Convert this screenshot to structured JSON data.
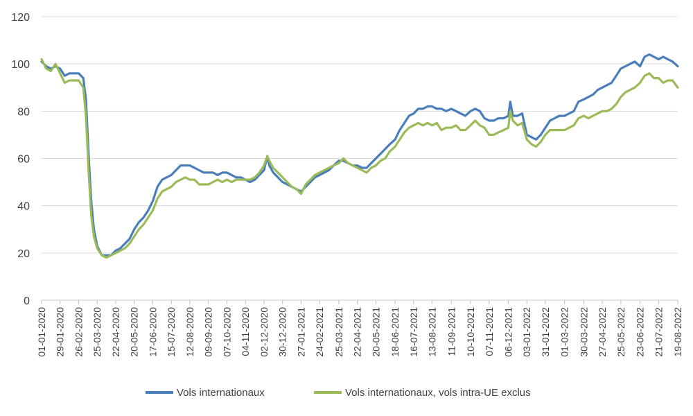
{
  "chart_data": {
    "type": "line",
    "title": "",
    "xlabel": "",
    "ylabel": "",
    "ylim": [
      0,
      120
    ],
    "yticks": [
      0,
      20,
      40,
      60,
      80,
      100,
      120
    ],
    "grid": true,
    "legend_position": "bottom",
    "x_tick_labels": [
      "01-01-2020",
      "29-01-2020",
      "26-02-2020",
      "25-03-2020",
      "22-04-2020",
      "20-05-2020",
      "17-06-2020",
      "15-07-2020",
      "12-08-2020",
      "09-09-2020",
      "07-10-2020",
      "04-11-2020",
      "02-12-2020",
      "30-12-2020",
      "27-01-2021",
      "24-02-2021",
      "25-03-2021",
      "22-04-2021",
      "20-05-2021",
      "18-06-2021",
      "16-07-2021",
      "13-08-2021",
      "11-09-2021",
      "10-10-2021",
      "07-11-2021",
      "06-12-2021",
      "03-01-2022",
      "31-01-2022",
      "01-03-2022",
      "30-03-2022",
      "27-04-2022",
      "25-05-2022",
      "23-06-2022",
      "21-07-2022",
      "19-08-2022"
    ],
    "series": [
      {
        "name": "Vols internationaux",
        "color": "#4a7ebb",
        "points": [
          [
            "01-01-2020",
            101
          ],
          [
            "08-01-2020",
            99
          ],
          [
            "15-01-2020",
            98
          ],
          [
            "22-01-2020",
            99
          ],
          [
            "29-01-2020",
            98
          ],
          [
            "05-02-2020",
            95
          ],
          [
            "12-02-2020",
            96
          ],
          [
            "19-02-2020",
            96
          ],
          [
            "26-02-2020",
            96
          ],
          [
            "04-03-2020",
            94
          ],
          [
            "08-03-2020",
            85
          ],
          [
            "12-03-2020",
            62
          ],
          [
            "16-03-2020",
            42
          ],
          [
            "20-03-2020",
            30
          ],
          [
            "25-03-2020",
            23
          ],
          [
            "01-04-2020",
            19
          ],
          [
            "08-04-2020",
            19
          ],
          [
            "15-04-2020",
            19
          ],
          [
            "22-04-2020",
            21
          ],
          [
            "29-04-2020",
            22
          ],
          [
            "06-05-2020",
            24
          ],
          [
            "13-05-2020",
            26
          ],
          [
            "20-05-2020",
            30
          ],
          [
            "27-05-2020",
            33
          ],
          [
            "03-06-2020",
            35
          ],
          [
            "10-06-2020",
            38
          ],
          [
            "17-06-2020",
            42
          ],
          [
            "24-06-2020",
            48
          ],
          [
            "01-07-2020",
            51
          ],
          [
            "08-07-2020",
            52
          ],
          [
            "15-07-2020",
            53
          ],
          [
            "22-07-2020",
            55
          ],
          [
            "29-07-2020",
            57
          ],
          [
            "05-08-2020",
            57
          ],
          [
            "12-08-2020",
            57
          ],
          [
            "19-08-2020",
            56
          ],
          [
            "26-08-2020",
            55
          ],
          [
            "02-09-2020",
            54
          ],
          [
            "09-09-2020",
            54
          ],
          [
            "16-09-2020",
            54
          ],
          [
            "23-09-2020",
            53
          ],
          [
            "30-09-2020",
            54
          ],
          [
            "07-10-2020",
            54
          ],
          [
            "14-10-2020",
            53
          ],
          [
            "21-10-2020",
            52
          ],
          [
            "28-10-2020",
            52
          ],
          [
            "04-11-2020",
            51
          ],
          [
            "11-11-2020",
            50
          ],
          [
            "18-11-2020",
            51
          ],
          [
            "25-11-2020",
            53
          ],
          [
            "02-12-2020",
            55
          ],
          [
            "07-12-2020",
            61
          ],
          [
            "10-12-2020",
            57
          ],
          [
            "16-12-2020",
            54
          ],
          [
            "23-12-2020",
            52
          ],
          [
            "30-12-2020",
            50
          ],
          [
            "06-01-2021",
            49
          ],
          [
            "13-01-2021",
            48
          ],
          [
            "20-01-2021",
            47
          ],
          [
            "27-01-2021",
            46
          ],
          [
            "03-02-2021",
            48
          ],
          [
            "10-02-2021",
            50
          ],
          [
            "17-02-2021",
            52
          ],
          [
            "24-02-2021",
            53
          ],
          [
            "03-03-2021",
            54
          ],
          [
            "10-03-2021",
            55
          ],
          [
            "17-03-2021",
            57
          ],
          [
            "25-03-2021",
            59
          ],
          [
            "01-04-2021",
            59
          ],
          [
            "08-04-2021",
            58
          ],
          [
            "15-04-2021",
            57
          ],
          [
            "22-04-2021",
            57
          ],
          [
            "29-04-2021",
            56
          ],
          [
            "06-05-2021",
            56
          ],
          [
            "13-05-2021",
            58
          ],
          [
            "20-05-2021",
            60
          ],
          [
            "27-05-2021",
            62
          ],
          [
            "03-06-2021",
            64
          ],
          [
            "10-06-2021",
            66
          ],
          [
            "18-06-2021",
            68
          ],
          [
            "25-06-2021",
            72
          ],
          [
            "02-07-2021",
            75
          ],
          [
            "09-07-2021",
            78
          ],
          [
            "16-07-2021",
            79
          ],
          [
            "23-07-2021",
            81
          ],
          [
            "30-07-2021",
            81
          ],
          [
            "06-08-2021",
            82
          ],
          [
            "13-08-2021",
            82
          ],
          [
            "20-08-2021",
            81
          ],
          [
            "27-08-2021",
            81
          ],
          [
            "03-09-2021",
            80
          ],
          [
            "11-09-2021",
            81
          ],
          [
            "18-09-2021",
            80
          ],
          [
            "25-09-2021",
            79
          ],
          [
            "02-10-2021",
            78
          ],
          [
            "10-10-2021",
            80
          ],
          [
            "17-10-2021",
            81
          ],
          [
            "24-10-2021",
            80
          ],
          [
            "31-10-2021",
            77
          ],
          [
            "07-11-2021",
            76
          ],
          [
            "14-11-2021",
            76
          ],
          [
            "21-11-2021",
            77
          ],
          [
            "29-11-2021",
            77
          ],
          [
            "06-12-2021",
            78
          ],
          [
            "09-12-2021",
            84
          ],
          [
            "13-12-2021",
            78
          ],
          [
            "20-12-2021",
            78
          ],
          [
            "27-12-2021",
            79
          ],
          [
            "03-01-2022",
            70
          ],
          [
            "10-01-2022",
            69
          ],
          [
            "17-01-2022",
            68
          ],
          [
            "24-01-2022",
            70
          ],
          [
            "31-01-2022",
            73
          ],
          [
            "07-02-2022",
            76
          ],
          [
            "14-02-2022",
            77
          ],
          [
            "21-02-2022",
            78
          ],
          [
            "01-03-2022",
            78
          ],
          [
            "08-03-2022",
            79
          ],
          [
            "15-03-2022",
            80
          ],
          [
            "22-03-2022",
            84
          ],
          [
            "30-03-2022",
            85
          ],
          [
            "06-04-2022",
            86
          ],
          [
            "13-04-2022",
            87
          ],
          [
            "20-04-2022",
            89
          ],
          [
            "27-04-2022",
            90
          ],
          [
            "04-05-2022",
            91
          ],
          [
            "11-05-2022",
            92
          ],
          [
            "18-05-2022",
            95
          ],
          [
            "25-05-2022",
            98
          ],
          [
            "01-06-2022",
            99
          ],
          [
            "08-06-2022",
            100
          ],
          [
            "15-06-2022",
            101
          ],
          [
            "23-06-2022",
            99
          ],
          [
            "30-06-2022",
            103
          ],
          [
            "07-07-2022",
            104
          ],
          [
            "14-07-2022",
            103
          ],
          [
            "21-07-2022",
            102
          ],
          [
            "28-07-2022",
            103
          ],
          [
            "04-08-2022",
            102
          ],
          [
            "11-08-2022",
            101
          ],
          [
            "19-08-2022",
            99
          ]
        ]
      },
      {
        "name": "Vols internationaux, vols intra-UE exclus",
        "color": "#9bbb59",
        "points": [
          [
            "01-01-2020",
            102
          ],
          [
            "08-01-2020",
            98
          ],
          [
            "15-01-2020",
            97
          ],
          [
            "22-01-2020",
            100
          ],
          [
            "29-01-2020",
            96
          ],
          [
            "05-02-2020",
            92
          ],
          [
            "12-02-2020",
            93
          ],
          [
            "19-02-2020",
            93
          ],
          [
            "26-02-2020",
            93
          ],
          [
            "04-03-2020",
            90
          ],
          [
            "08-03-2020",
            78
          ],
          [
            "12-03-2020",
            55
          ],
          [
            "16-03-2020",
            36
          ],
          [
            "20-03-2020",
            27
          ],
          [
            "25-03-2020",
            22
          ],
          [
            "01-04-2020",
            19
          ],
          [
            "08-04-2020",
            18
          ],
          [
            "15-04-2020",
            19
          ],
          [
            "22-04-2020",
            20
          ],
          [
            "29-04-2020",
            21
          ],
          [
            "06-05-2020",
            22
          ],
          [
            "13-05-2020",
            24
          ],
          [
            "20-05-2020",
            27
          ],
          [
            "27-05-2020",
            30
          ],
          [
            "03-06-2020",
            32
          ],
          [
            "10-06-2020",
            35
          ],
          [
            "17-06-2020",
            38
          ],
          [
            "24-06-2020",
            43
          ],
          [
            "01-07-2020",
            46
          ],
          [
            "08-07-2020",
            47
          ],
          [
            "15-07-2020",
            48
          ],
          [
            "22-07-2020",
            50
          ],
          [
            "29-07-2020",
            51
          ],
          [
            "05-08-2020",
            52
          ],
          [
            "12-08-2020",
            51
          ],
          [
            "19-08-2020",
            51
          ],
          [
            "26-08-2020",
            49
          ],
          [
            "02-09-2020",
            49
          ],
          [
            "09-09-2020",
            49
          ],
          [
            "16-09-2020",
            50
          ],
          [
            "23-09-2020",
            51
          ],
          [
            "30-09-2020",
            50
          ],
          [
            "07-10-2020",
            51
          ],
          [
            "14-10-2020",
            50
          ],
          [
            "21-10-2020",
            51
          ],
          [
            "28-10-2020",
            51
          ],
          [
            "04-11-2020",
            51
          ],
          [
            "11-11-2020",
            51
          ],
          [
            "18-11-2020",
            52
          ],
          [
            "25-11-2020",
            54
          ],
          [
            "02-12-2020",
            57
          ],
          [
            "07-12-2020",
            61
          ],
          [
            "10-12-2020",
            59
          ],
          [
            "16-12-2020",
            56
          ],
          [
            "23-12-2020",
            54
          ],
          [
            "30-12-2020",
            52
          ],
          [
            "06-01-2021",
            50
          ],
          [
            "13-01-2021",
            48
          ],
          [
            "20-01-2021",
            47
          ],
          [
            "27-01-2021",
            45
          ],
          [
            "03-02-2021",
            49
          ],
          [
            "10-02-2021",
            51
          ],
          [
            "17-02-2021",
            53
          ],
          [
            "24-02-2021",
            54
          ],
          [
            "03-03-2021",
            55
          ],
          [
            "10-03-2021",
            56
          ],
          [
            "17-03-2021",
            57
          ],
          [
            "25-03-2021",
            58
          ],
          [
            "01-04-2021",
            60
          ],
          [
            "08-04-2021",
            58
          ],
          [
            "15-04-2021",
            57
          ],
          [
            "22-04-2021",
            56
          ],
          [
            "29-04-2021",
            55
          ],
          [
            "06-05-2021",
            54
          ],
          [
            "13-05-2021",
            56
          ],
          [
            "20-05-2021",
            57
          ],
          [
            "27-05-2021",
            59
          ],
          [
            "03-06-2021",
            60
          ],
          [
            "10-06-2021",
            63
          ],
          [
            "18-06-2021",
            65
          ],
          [
            "25-06-2021",
            68
          ],
          [
            "02-07-2021",
            71
          ],
          [
            "09-07-2021",
            73
          ],
          [
            "16-07-2021",
            74
          ],
          [
            "23-07-2021",
            75
          ],
          [
            "30-07-2021",
            74
          ],
          [
            "06-08-2021",
            75
          ],
          [
            "13-08-2021",
            74
          ],
          [
            "20-08-2021",
            75
          ],
          [
            "27-08-2021",
            72
          ],
          [
            "03-09-2021",
            73
          ],
          [
            "11-09-2021",
            73
          ],
          [
            "18-09-2021",
            74
          ],
          [
            "25-09-2021",
            72
          ],
          [
            "02-10-2021",
            72
          ],
          [
            "10-10-2021",
            74
          ],
          [
            "17-10-2021",
            76
          ],
          [
            "24-10-2021",
            74
          ],
          [
            "31-10-2021",
            73
          ],
          [
            "07-11-2021",
            70
          ],
          [
            "14-11-2021",
            70
          ],
          [
            "21-11-2021",
            71
          ],
          [
            "29-11-2021",
            72
          ],
          [
            "06-12-2021",
            73
          ],
          [
            "09-12-2021",
            80
          ],
          [
            "13-12-2021",
            76
          ],
          [
            "20-12-2021",
            74
          ],
          [
            "27-12-2021",
            75
          ],
          [
            "03-01-2022",
            68
          ],
          [
            "10-01-2022",
            66
          ],
          [
            "17-01-2022",
            65
          ],
          [
            "24-01-2022",
            67
          ],
          [
            "31-01-2022",
            70
          ],
          [
            "07-02-2022",
            72
          ],
          [
            "14-02-2022",
            72
          ],
          [
            "21-02-2022",
            72
          ],
          [
            "01-03-2022",
            72
          ],
          [
            "08-03-2022",
            73
          ],
          [
            "15-03-2022",
            74
          ],
          [
            "22-03-2022",
            77
          ],
          [
            "30-03-2022",
            78
          ],
          [
            "06-04-2022",
            77
          ],
          [
            "13-04-2022",
            78
          ],
          [
            "20-04-2022",
            79
          ],
          [
            "27-04-2022",
            80
          ],
          [
            "04-05-2022",
            80
          ],
          [
            "11-05-2022",
            81
          ],
          [
            "18-05-2022",
            83
          ],
          [
            "25-05-2022",
            86
          ],
          [
            "01-06-2022",
            88
          ],
          [
            "08-06-2022",
            89
          ],
          [
            "15-06-2022",
            90
          ],
          [
            "23-06-2022",
            92
          ],
          [
            "30-06-2022",
            95
          ],
          [
            "07-07-2022",
            96
          ],
          [
            "14-07-2022",
            94
          ],
          [
            "21-07-2022",
            94
          ],
          [
            "28-07-2022",
            92
          ],
          [
            "04-08-2022",
            93
          ],
          [
            "11-08-2022",
            93
          ],
          [
            "19-08-2022",
            90
          ]
        ]
      }
    ]
  }
}
